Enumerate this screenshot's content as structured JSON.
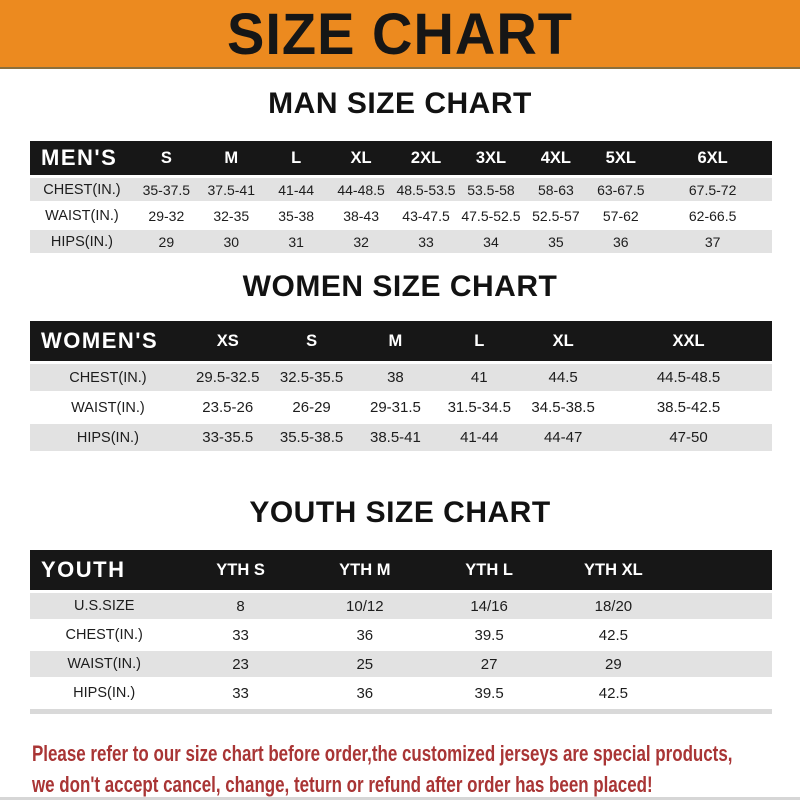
{
  "colors": {
    "banner_bg": "#ec8a1f",
    "bar_bg": "#171717",
    "row_alt_bg": "#e2e2e2",
    "footer_text": "#a93535"
  },
  "banner": {
    "title": "SIZE CHART"
  },
  "sections": [
    {
      "heading": "MAN SIZE CHART",
      "table_label": "MEN'S",
      "columns": [
        "S",
        "M",
        "L",
        "XL",
        "2XL",
        "3XL",
        "4XL",
        "5XL",
        "6XL"
      ],
      "rows": [
        {
          "label": "CHEST(IN.)",
          "values": [
            "35-37.5",
            "37.5-41",
            "41-44",
            "44-48.5",
            "48.5-53.5",
            "53.5-58",
            "58-63",
            "63-67.5",
            "67.5-72"
          ]
        },
        {
          "label": "WAIST(IN.)",
          "values": [
            "29-32",
            "32-35",
            "35-38",
            "38-43",
            "43-47.5",
            "47.5-52.5",
            "52.5-57",
            "57-62",
            "62-66.5"
          ]
        },
        {
          "label": "HIPS(IN.)",
          "values": [
            "29",
            "30",
            "31",
            "32",
            "33",
            "34",
            "35",
            "36",
            "37"
          ]
        }
      ]
    },
    {
      "heading": "WOMEN SIZE CHART",
      "table_label": "WOMEN'S",
      "columns": [
        "XS",
        "S",
        "M",
        "L",
        "XL",
        "XXL"
      ],
      "rows": [
        {
          "label": "CHEST(IN.)",
          "values": [
            "29.5-32.5",
            "32.5-35.5",
            "38",
            "41",
            "44.5",
            "44.5-48.5"
          ]
        },
        {
          "label": "WAIST(IN.)",
          "values": [
            "23.5-26",
            "26-29",
            "29-31.5",
            "31.5-34.5",
            "34.5-38.5",
            "38.5-42.5"
          ]
        },
        {
          "label": "HIPS(IN.)",
          "values": [
            "33-35.5",
            "35.5-38.5",
            "38.5-41",
            "41-44",
            "44-47",
            "47-50"
          ]
        }
      ]
    },
    {
      "heading": "YOUTH SIZE CHART",
      "table_label": "YOUTH",
      "columns": [
        "YTH S",
        "YTH M",
        "YTH L",
        "YTH XL",
        ""
      ],
      "rows": [
        {
          "label": "U.S.SIZE",
          "values": [
            "8",
            "10/12",
            "14/16",
            "18/20",
            ""
          ]
        },
        {
          "label": "CHEST(IN.)",
          "values": [
            "33",
            "36",
            "39.5",
            "42.5",
            ""
          ]
        },
        {
          "label": "WAIST(IN.)",
          "values": [
            "23",
            "25",
            "27",
            "29",
            ""
          ]
        },
        {
          "label": "HIPS(IN.)",
          "values": [
            "33",
            "36",
            "39.5",
            "42.5",
            ""
          ]
        }
      ]
    }
  ],
  "footer": {
    "line1": "Please refer to our size chart before order,the customized jerseys are special products,",
    "line2": "we don't accept cancel, change, teturn or refund after order has been placed!"
  }
}
